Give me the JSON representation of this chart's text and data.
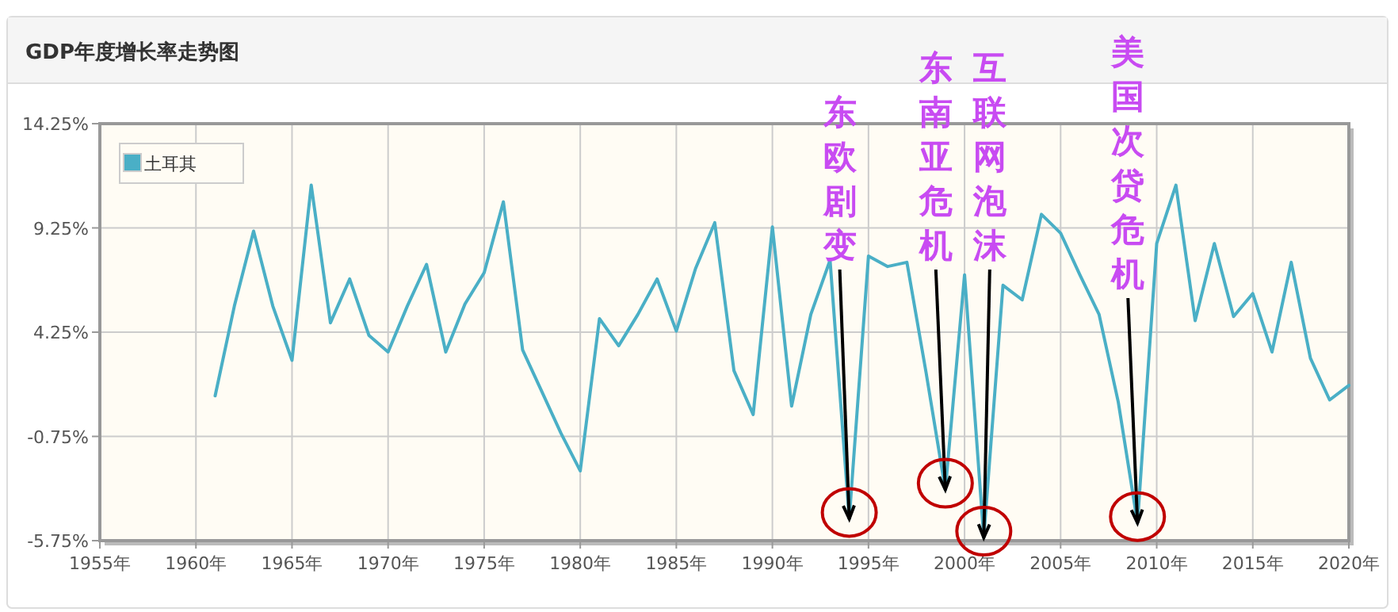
{
  "chart_data": {
    "type": "line",
    "title": "GDP年度增长率走势图",
    "x": [
      1961,
      1962,
      1963,
      1964,
      1965,
      1966,
      1967,
      1968,
      1969,
      1970,
      1971,
      1972,
      1973,
      1974,
      1975,
      1976,
      1977,
      1978,
      1979,
      1980,
      1981,
      1982,
      1983,
      1984,
      1985,
      1986,
      1987,
      1988,
      1989,
      1990,
      1991,
      1992,
      1993,
      1994,
      1995,
      1996,
      1997,
      1998,
      1999,
      2000,
      2001,
      2002,
      2003,
      2004,
      2005,
      2006,
      2007,
      2008,
      2009,
      2010,
      2011,
      2012,
      2013,
      2014,
      2015,
      2016,
      2017,
      2018,
      2019,
      2020
    ],
    "series": [
      {
        "name": "土耳其",
        "color": "#4aafc6",
        "values": [
          1.2,
          5.5,
          9.1,
          5.5,
          2.9,
          11.3,
          4.7,
          6.8,
          4.1,
          3.3,
          5.5,
          7.5,
          3.3,
          5.6,
          7.1,
          10.5,
          3.4,
          1.4,
          -0.6,
          -2.4,
          4.9,
          3.6,
          5.1,
          6.8,
          4.3,
          7.3,
          9.5,
          2.4,
          0.3,
          9.3,
          0.7,
          5.1,
          7.7,
          -4.7,
          7.9,
          7.4,
          7.6,
          2.3,
          -3.3,
          7.0,
          -5.6,
          6.5,
          5.8,
          9.9,
          9.0,
          7.0,
          5.1,
          0.9,
          -4.9,
          8.5,
          11.3,
          4.8,
          8.5,
          5.0,
          6.1,
          3.3,
          7.6,
          3.0,
          1.0,
          1.7
        ]
      }
    ],
    "xlim": [
      1955,
      2020
    ],
    "xticks": [
      {
        "value": 1955,
        "label": "1955年"
      },
      {
        "value": 1960,
        "label": "1960年"
      },
      {
        "value": 1965,
        "label": "1965年"
      },
      {
        "value": 1970,
        "label": "1970年"
      },
      {
        "value": 1975,
        "label": "1975年"
      },
      {
        "value": 1980,
        "label": "1980年"
      },
      {
        "value": 1985,
        "label": "1985年"
      },
      {
        "value": 1990,
        "label": "1990年"
      },
      {
        "value": 1995,
        "label": "1995年"
      },
      {
        "value": 2000,
        "label": "2000年"
      },
      {
        "value": 2005,
        "label": "2005年"
      },
      {
        "value": 2010,
        "label": "2010年"
      },
      {
        "value": 2015,
        "label": "2015年"
      },
      {
        "value": 2020,
        "label": "2020年"
      }
    ],
    "ylim": [
      -5.75,
      14.25
    ],
    "yticks": [
      {
        "value": -5.75,
        "label": "-5.75%"
      },
      {
        "value": -0.75,
        "label": "-0.75%"
      },
      {
        "value": 4.25,
        "label": "4.25%"
      },
      {
        "value": 9.25,
        "label": "9.25%"
      },
      {
        "value": 14.25,
        "label": "14.25%"
      }
    ],
    "grid": true,
    "legend": "top left",
    "marker": "none",
    "line_style": "solid",
    "annotations": [
      {
        "text": "东欧剧变",
        "x": 1994,
        "y": -4.7
      },
      {
        "text": "东南亚危机",
        "x": 1999,
        "y": -3.3
      },
      {
        "text": "互联网泡沫",
        "x": 2001,
        "y": -5.6
      },
      {
        "text": "美国次贷危机",
        "x": 2009,
        "y": -4.9
      }
    ]
  }
}
